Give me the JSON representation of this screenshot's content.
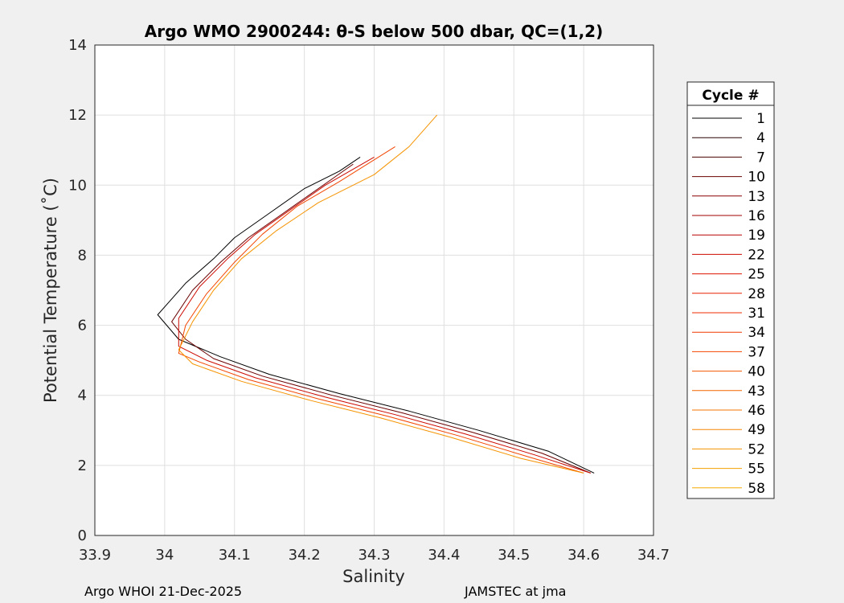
{
  "chart_data": {
    "type": "line",
    "title": "Argo WMO 2900244: θ-S below 500 dbar,  QC=(1,2)",
    "xlabel": "Salinity",
    "ylabel": "Potential Temperature (˚C)",
    "xlim": [
      33.9,
      34.7
    ],
    "ylim": [
      0,
      14
    ],
    "xticks": [
      "33.9",
      "34",
      "34.1",
      "34.2",
      "34.3",
      "34.4",
      "34.5",
      "34.6",
      "34.7"
    ],
    "yticks": [
      "0",
      "2",
      "4",
      "6",
      "8",
      "10",
      "12",
      "14"
    ],
    "grid": true,
    "legend": {
      "title": "Cycle #",
      "placement": "right",
      "entries": [
        "1",
        "4",
        "7",
        "10",
        "13",
        "16",
        "19",
        "22",
        "25",
        "28",
        "31",
        "34",
        "37",
        "40",
        "43",
        "46",
        "49",
        "52",
        "55",
        "58"
      ],
      "colors": [
        "#000000",
        "#2a0000",
        "#4a0000",
        "#6a0000",
        "#8a0000",
        "#a30000",
        "#b80000",
        "#cc0a00",
        "#dd1500",
        "#e82000",
        "#ee2b00",
        "#f03800",
        "#f24500",
        "#f35500",
        "#f46500",
        "#f57500",
        "#f58500",
        "#f59300",
        "#f5a000",
        "#f5ab00"
      ]
    },
    "series_note": "Each profile traces theta vs salinity; representative trace points in data units",
    "series": [
      {
        "name": "1",
        "color": "#000000",
        "x": [
          34.615,
          34.55,
          34.45,
          34.35,
          34.25,
          34.15,
          34.08,
          34.02,
          33.99,
          34.03,
          34.07,
          34.1,
          34.15,
          34.2,
          34.25,
          34.28
        ],
        "y": [
          1.78,
          2.4,
          3.0,
          3.55,
          4.05,
          4.6,
          5.1,
          5.6,
          6.3,
          7.2,
          7.9,
          8.5,
          9.2,
          9.9,
          10.4,
          10.8
        ]
      },
      {
        "name": "10",
        "color": "#6a0000",
        "x": [
          34.61,
          34.54,
          34.44,
          34.34,
          34.24,
          34.14,
          34.07,
          34.03,
          34.01,
          34.04,
          34.08,
          34.12,
          34.17,
          34.22,
          34.27
        ],
        "y": [
          1.78,
          2.35,
          2.95,
          3.5,
          4.0,
          4.55,
          5.05,
          5.6,
          6.1,
          7.0,
          7.8,
          8.5,
          9.2,
          9.9,
          10.6
        ]
      },
      {
        "name": "22",
        "color": "#cc0a00",
        "x": [
          34.61,
          34.53,
          34.43,
          34.33,
          34.23,
          34.13,
          34.06,
          34.02,
          34.02,
          34.05,
          34.09,
          34.13,
          34.18,
          34.23,
          34.3
        ],
        "y": [
          1.78,
          2.3,
          2.9,
          3.45,
          3.95,
          4.5,
          5.0,
          5.4,
          6.2,
          7.1,
          7.9,
          8.6,
          9.3,
          10.0,
          10.8
        ]
      },
      {
        "name": "37",
        "color": "#f24500",
        "x": [
          34.6,
          34.52,
          34.42,
          34.32,
          34.22,
          34.12,
          34.05,
          34.02,
          34.03,
          34.06,
          34.1,
          34.14,
          34.19,
          34.25,
          34.33
        ],
        "y": [
          1.78,
          2.25,
          2.85,
          3.4,
          3.9,
          4.45,
          4.95,
          5.2,
          6.0,
          6.9,
          7.8,
          8.6,
          9.4,
          10.1,
          11.1
        ]
      },
      {
        "name": "52",
        "color": "#f59300",
        "x": [
          34.6,
          34.51,
          34.41,
          34.31,
          34.21,
          34.11,
          34.04,
          34.02,
          34.04,
          34.07,
          34.11,
          34.16,
          34.22,
          34.3,
          34.35,
          34.39
        ],
        "y": [
          1.78,
          2.2,
          2.8,
          3.35,
          3.85,
          4.4,
          4.9,
          5.3,
          6.1,
          7.0,
          7.9,
          8.7,
          9.5,
          10.3,
          11.1,
          12.0
        ]
      }
    ]
  },
  "footer": {
    "left": "Argo WHOI 21-Dec-2025",
    "right": "JAMSTEC at jma"
  }
}
